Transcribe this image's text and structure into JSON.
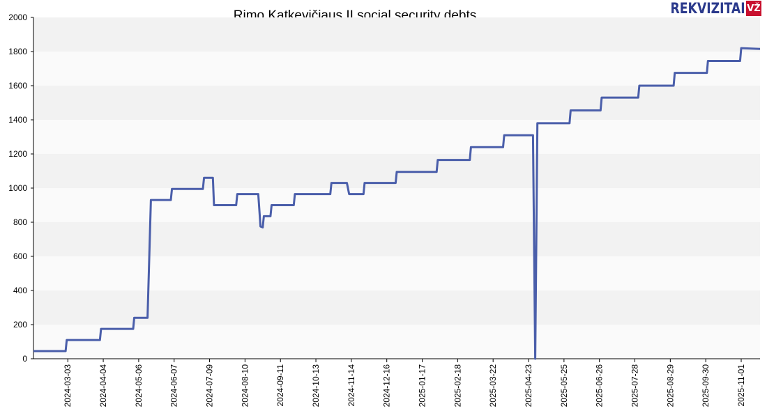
{
  "brand": {
    "name": "REKVIZITAI",
    "badge": "VŽ",
    "text_color": "#2b3a8c",
    "badge_color": "#c8102e"
  },
  "chart_data": {
    "type": "line",
    "title": "Rimo Katkevičiaus IĮ social security debts",
    "xlabel": "",
    "ylabel": "",
    "ylim": [
      0,
      2000
    ],
    "xlim": [
      "2024-02-01",
      "2025-11-18"
    ],
    "grid": true,
    "line_color": "#4a5eaa",
    "band_colors": [
      "#f2f2f2",
      "#fafafa"
    ],
    "yticks": [
      0,
      200,
      400,
      600,
      800,
      1000,
      1200,
      1400,
      1600,
      1800,
      2000
    ],
    "xticks": [
      "2024-03-03",
      "2024-04-04",
      "2024-05-06",
      "2024-06-07",
      "2024-07-09",
      "2024-08-10",
      "2024-09-11",
      "2024-10-13",
      "2024-11-14",
      "2024-12-16",
      "2025-01-17",
      "2025-02-18",
      "2025-03-22",
      "2025-04-23",
      "2025-05-25",
      "2025-06-26",
      "2025-07-28",
      "2025-08-29",
      "2025-09-30",
      "2025-11-01"
    ],
    "series": [
      {
        "points": [
          [
            "2024-02-01",
            45
          ],
          [
            "2024-03-01",
            45
          ],
          [
            "2024-03-02",
            110
          ],
          [
            "2024-04-01",
            110
          ],
          [
            "2024-04-02",
            175
          ],
          [
            "2024-05-01",
            175
          ],
          [
            "2024-05-02",
            240
          ],
          [
            "2024-05-14",
            240
          ],
          [
            "2024-05-17",
            930
          ],
          [
            "2024-06-04",
            930
          ],
          [
            "2024-06-05",
            995
          ],
          [
            "2024-07-03",
            995
          ],
          [
            "2024-07-04",
            1060
          ],
          [
            "2024-07-12",
            1060
          ],
          [
            "2024-07-13",
            900
          ],
          [
            "2024-08-02",
            900
          ],
          [
            "2024-08-03",
            965
          ],
          [
            "2024-08-22",
            965
          ],
          [
            "2024-08-24",
            775
          ],
          [
            "2024-08-26",
            770
          ],
          [
            "2024-08-27",
            835
          ],
          [
            "2024-09-02",
            835
          ],
          [
            "2024-09-03",
            900
          ],
          [
            "2024-09-23",
            900
          ],
          [
            "2024-09-24",
            965
          ],
          [
            "2024-10-26",
            965
          ],
          [
            "2024-10-27",
            1030
          ],
          [
            "2024-11-10",
            1030
          ],
          [
            "2024-11-12",
            965
          ],
          [
            "2024-11-25",
            965
          ],
          [
            "2024-11-26",
            1030
          ],
          [
            "2024-12-24",
            1030
          ],
          [
            "2024-12-25",
            1095
          ],
          [
            "2025-01-30",
            1095
          ],
          [
            "2025-01-31",
            1165
          ],
          [
            "2025-03-01",
            1165
          ],
          [
            "2025-03-02",
            1240
          ],
          [
            "2025-03-31",
            1240
          ],
          [
            "2025-04-01",
            1310
          ],
          [
            "2025-04-27",
            1310
          ],
          [
            "2025-04-29",
            0
          ],
          [
            "2025-05-01",
            1380
          ],
          [
            "2025-05-30",
            1380
          ],
          [
            "2025-05-31",
            1455
          ],
          [
            "2025-06-27",
            1455
          ],
          [
            "2025-06-28",
            1530
          ],
          [
            "2025-07-31",
            1530
          ],
          [
            "2025-08-01",
            1600
          ],
          [
            "2025-09-01",
            1600
          ],
          [
            "2025-09-02",
            1675
          ],
          [
            "2025-10-01",
            1675
          ],
          [
            "2025-10-02",
            1745
          ],
          [
            "2025-10-31",
            1745
          ],
          [
            "2025-11-01",
            1820
          ],
          [
            "2025-11-18",
            1815
          ]
        ]
      }
    ]
  }
}
